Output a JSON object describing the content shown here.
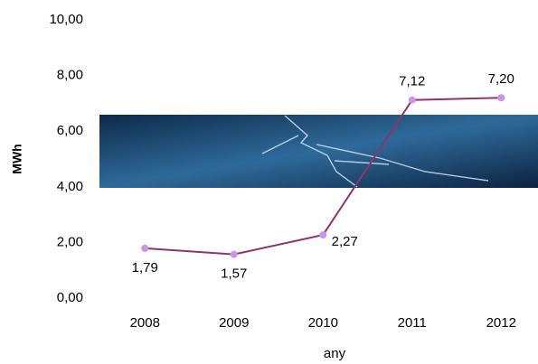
{
  "chart_data": {
    "type": "line",
    "categories": [
      "2008",
      "2009",
      "2010",
      "2011",
      "2012"
    ],
    "series": [
      {
        "color": "#8e3566",
        "marker_color": "#c795ec",
        "values": [
          1.79,
          1.57,
          2.27,
          7.12,
          7.2
        ],
        "value_labels": [
          "1,79",
          "1,57",
          "2,27",
          "7,12",
          "7,20"
        ]
      }
    ],
    "ylim": [
      0,
      10
    ],
    "yticks": [
      {
        "value": 0,
        "label": "0,00"
      },
      {
        "value": 2,
        "label": "2,00"
      },
      {
        "value": 4,
        "label": "4,00"
      },
      {
        "value": 6,
        "label": "6,00"
      },
      {
        "value": 8,
        "label": "8,00"
      },
      {
        "value": 10,
        "label": "10,00"
      }
    ],
    "y_label": "MWh",
    "x_label": "any"
  }
}
